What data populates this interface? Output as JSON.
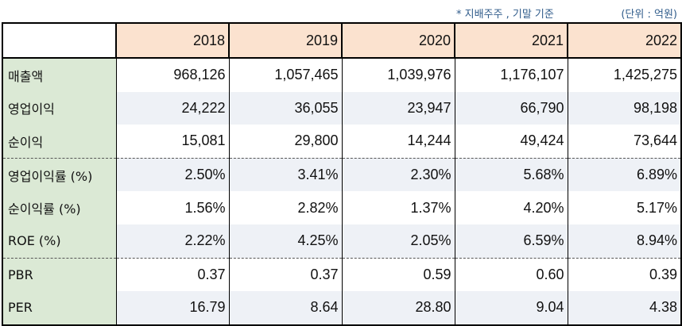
{
  "notes": {
    "basis": "* 지배주주 , 기말 기준",
    "unit": "(단위 : 억원)"
  },
  "table": {
    "years": [
      "2018",
      "2019",
      "2020",
      "2021",
      "2022"
    ],
    "rows": [
      {
        "label": "매출액",
        "values": [
          "968,126",
          "1,057,465",
          "1,039,976",
          "1,176,107",
          "1,425,275"
        ]
      },
      {
        "label": "영업이익",
        "values": [
          "24,222",
          "36,055",
          "23,947",
          "66,790",
          "98,198"
        ]
      },
      {
        "label": "순이익",
        "values": [
          "15,081",
          "29,800",
          "14,244",
          "49,424",
          "73,644"
        ]
      },
      {
        "label": "영업이익률 (%)",
        "values": [
          "2.50%",
          "3.41%",
          "2.30%",
          "5.68%",
          "6.89%"
        ]
      },
      {
        "label": "순이익률 (%)",
        "values": [
          "1.56%",
          "2.82%",
          "1.37%",
          "4.20%",
          "5.17%"
        ]
      },
      {
        "label": "ROE (%)",
        "values": [
          "2.22%",
          "4.25%",
          "2.05%",
          "6.59%",
          "8.94%"
        ]
      },
      {
        "label": "PBR",
        "values": [
          "0.37",
          "0.37",
          "0.59",
          "0.60",
          "0.39"
        ]
      },
      {
        "label": "PER",
        "values": [
          "16.79",
          "8.64",
          "28.80",
          "9.04",
          "4.38"
        ]
      }
    ]
  }
}
